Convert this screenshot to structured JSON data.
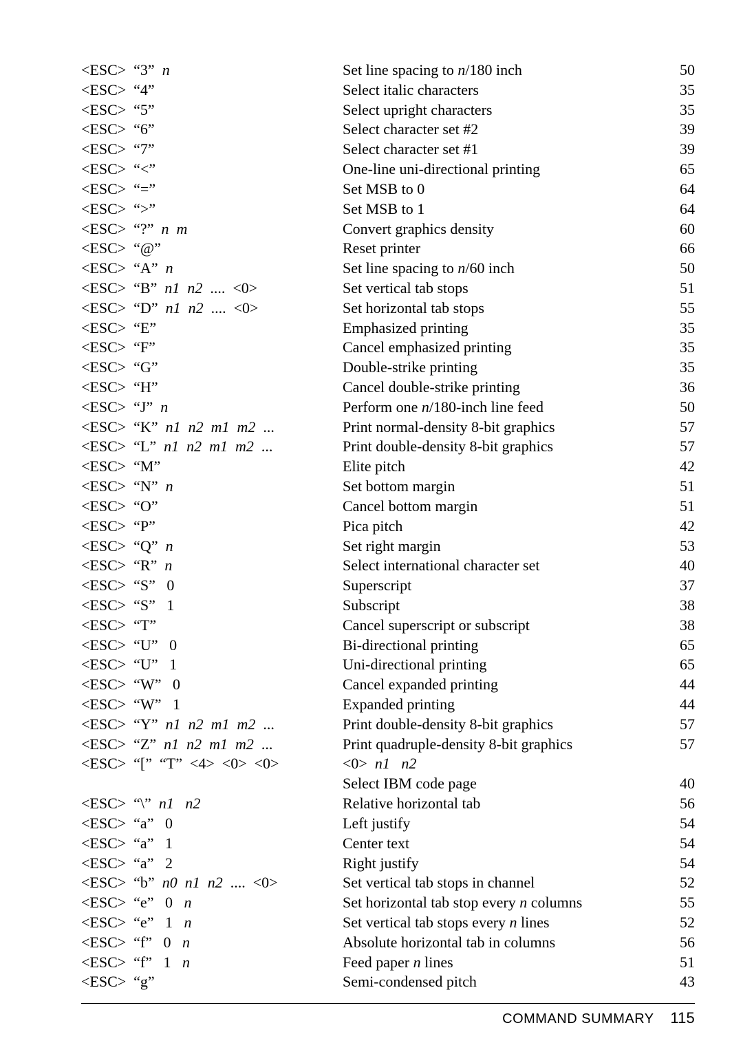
{
  "rows": [
    {
      "cmd": "<ESC>  “3”  |n|",
      "desc": "Set line spacing to |n|/180 inch",
      "page": "50"
    },
    {
      "cmd": "<ESC>  “4”",
      "desc": "Select italic characters",
      "page": "35"
    },
    {
      "cmd": "<ESC>  “5”",
      "desc": "Select upright characters",
      "page": "35"
    },
    {
      "cmd": "<ESC>  “6”",
      "desc": "Select character set #2",
      "page": "39"
    },
    {
      "cmd": "<ESC>  “7”",
      "desc": "Select character set #1",
      "page": "39"
    },
    {
      "cmd": "<ESC>  “<”",
      "desc": "One-line uni-directional printing",
      "page": "65"
    },
    {
      "cmd": "<ESC>  “=”",
      "desc": "Set MSB to 0",
      "page": "64"
    },
    {
      "cmd": "<ESC>  “>”",
      "desc": "Set MSB to 1",
      "page": "64"
    },
    {
      "cmd": "<ESC>  “?”  |n|  |m|",
      "desc": "Convert graphics density",
      "page": "60"
    },
    {
      "cmd": "<ESC>  “@”",
      "desc": "Reset printer",
      "page": "66"
    },
    {
      "cmd": "<ESC>  “A”  |n|",
      "desc": "Set line spacing to |n|/60 inch",
      "page": "50"
    },
    {
      "cmd": "<ESC>  “B”  |n1|  |n2|  ....  <0>",
      "desc": "Set vertical tab stops",
      "page": "51"
    },
    {
      "cmd": "<ESC>  “D”  |n1|  |n2|  ....  <0>",
      "desc": "Set horizontal tab stops",
      "page": "55"
    },
    {
      "cmd": "<ESC>  “E”",
      "desc": "Emphasized printing",
      "page": "35"
    },
    {
      "cmd": "<ESC>  “F”",
      "desc": "Cancel emphasized printing",
      "page": "35"
    },
    {
      "cmd": "<ESC>  “G”",
      "desc": "Double-strike printing",
      "page": "35"
    },
    {
      "cmd": "<ESC>  “H”",
      "desc": "Cancel double-strike printing",
      "page": "36"
    },
    {
      "cmd": "<ESC>  “J”  |n|",
      "desc": "Perform one |n|/180-inch line feed",
      "page": "50"
    },
    {
      "cmd": "<ESC>  “K”  |n1|  |n2|  |m1|  |m2|  ...",
      "desc": "Print normal-density 8-bit graphics",
      "page": "57"
    },
    {
      "cmd": "<ESC>  “L”  |n1|  |n2|  |m1|  |m2|  ...",
      "desc": "Print double-density 8-bit graphics",
      "page": "57"
    },
    {
      "cmd": "<ESC>  “M”",
      "desc": "Elite pitch",
      "page": "42"
    },
    {
      "cmd": "<ESC>  “N”  |n|",
      "desc": "Set bottom margin",
      "page": "51"
    },
    {
      "cmd": "<ESC>  “O”",
      "desc": "Cancel bottom margin",
      "page": "51"
    },
    {
      "cmd": "<ESC>  “P”",
      "desc": "Pica pitch",
      "page": "42"
    },
    {
      "cmd": "<ESC>  “Q”  |n|",
      "desc": "Set right margin",
      "page": "53"
    },
    {
      "cmd": "<ESC>  “R”  |n|",
      "desc": "Select international character set",
      "page": "40"
    },
    {
      "cmd": "<ESC>  “S”   0",
      "desc": "Superscript",
      "page": "37"
    },
    {
      "cmd": "<ESC>  “S”   1",
      "desc": "Subscript",
      "page": "38"
    },
    {
      "cmd": "<ESC>  “T”",
      "desc": "Cancel superscript or subscript",
      "page": "38"
    },
    {
      "cmd": "<ESC>  “U”   0",
      "desc": "Bi-directional printing",
      "page": "65"
    },
    {
      "cmd": "<ESC>  “U”   1",
      "desc": "Uni-directional printing",
      "page": "65"
    },
    {
      "cmd": "<ESC>  “W”   0",
      "desc": "Cancel expanded printing",
      "page": "44"
    },
    {
      "cmd": "<ESC>  “W”   1",
      "desc": "Expanded printing",
      "page": "44"
    },
    {
      "cmd": "<ESC>  “Y”  |n1|  |n2|  |m1|  |m2|  ...",
      "desc": "Print double-density 8-bit graphics",
      "page": "57"
    },
    {
      "cmd": "<ESC>  “Z”  |n1|  |n2|  |m1|  |m2|  ...",
      "desc": "Print quadruple-density 8-bit graphics",
      "page": "57"
    },
    {
      "cmd": "<ESC>  “[”  “T”  <4>  <0>  <0>",
      "desc": "<0>  |n1|   |n2|",
      "page": "",
      "desc_in_cmd_area": true
    },
    {
      "cmd": "",
      "desc": "Select IBM code page",
      "page": "40"
    },
    {
      "cmd": "<ESC>  “\\”  |n1|   |n2|",
      "desc": "Relative horizontal tab",
      "page": "56"
    },
    {
      "cmd": "<ESC>  “a”   0",
      "desc": "Left justify",
      "page": "54"
    },
    {
      "cmd": "<ESC>  “a”   1",
      "desc": "Center text",
      "page": "54"
    },
    {
      "cmd": "<ESC>  “a”   2",
      "desc": "Right justify",
      "page": "54"
    },
    {
      "cmd": "<ESC>  “b”  |n0|  |n1|  |n2|  ....  <0>",
      "desc": "Set vertical tab stops in channel",
      "page": "52"
    },
    {
      "cmd": "<ESC>  “e”   0   |n|",
      "desc": "Set horizontal tab stop every |n| columns",
      "page": "55"
    },
    {
      "cmd": "<ESC>  “e”   1   |n|",
      "desc": "Set vertical tab stops every |n| lines",
      "page": "52"
    },
    {
      "cmd": "<ESC>  “f”   0   |n|",
      "desc": "Absolute horizontal tab in columns",
      "page": "56"
    },
    {
      "cmd": "<ESC>  “f”   1   |n|",
      "desc": "Feed paper |n| lines",
      "page": "51"
    },
    {
      "cmd": "<ESC>  “g”",
      "desc": "Semi-condensed pitch",
      "page": "43"
    }
  ],
  "footer": {
    "label": "COMMAND SUMMARY",
    "page": "115"
  }
}
